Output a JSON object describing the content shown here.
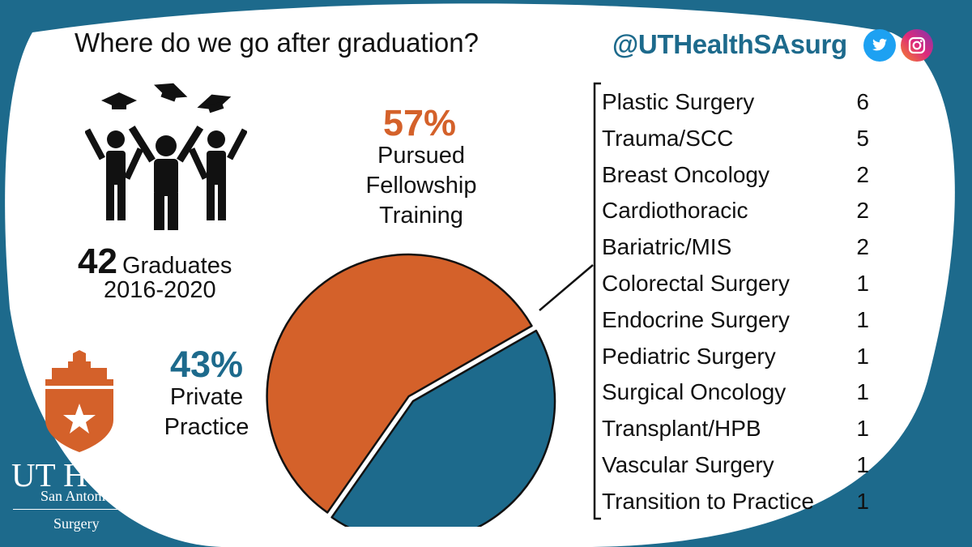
{
  "header": {
    "title": "Where do we go after graduation?",
    "handle": "@UTHealthSAsurg"
  },
  "icons": [
    "twitter-icon",
    "instagram-icon",
    "graduation-cap-icon",
    "graduates-figures-icon",
    "ut-health-shield-logo"
  ],
  "colors": {
    "blue": "#1d6a8c",
    "orange": "#d4612a",
    "twitter": "#1da1f2",
    "instagram_start": "#f58529",
    "instagram_end": "#c13584"
  },
  "graduates": {
    "count": "42",
    "label": "Graduates",
    "years": "2016-2020"
  },
  "chart_data": {
    "type": "pie",
    "series": [
      {
        "name": "Pursued Fellowship Training",
        "value": 57,
        "label": "57%",
        "description": [
          "Pursued",
          "Fellowship",
          "Training"
        ],
        "color": "#d4612a",
        "exploded": true
      },
      {
        "name": "Private Practice",
        "value": 43,
        "label": "43%",
        "description": [
          "Private",
          "Practice"
        ],
        "color": "#1d6a8c",
        "exploded": false
      }
    ],
    "breakdown": {
      "of": "Pursued Fellowship Training",
      "items": [
        {
          "label": "Plastic Surgery",
          "value": 6
        },
        {
          "label": "Trauma/SCC",
          "value": 5
        },
        {
          "label": "Breast Oncology",
          "value": 2
        },
        {
          "label": "Cardiothoracic",
          "value": 2
        },
        {
          "label": "Bariatric/MIS",
          "value": 2
        },
        {
          "label": "Colorectal Surgery",
          "value": 1
        },
        {
          "label": "Endocrine Surgery",
          "value": 1
        },
        {
          "label": "Pediatric Surgery",
          "value": 1
        },
        {
          "label": "Surgical Oncology",
          "value": 1
        },
        {
          "label": "Transplant/HPB",
          "value": 1
        },
        {
          "label": "Vascular Surgery",
          "value": 1
        },
        {
          "label": "Transition to Practice",
          "value": 1
        }
      ]
    }
  },
  "logo": {
    "line1": "UT Health",
    "line2": "San Antonio",
    "line3": "Surgery"
  }
}
